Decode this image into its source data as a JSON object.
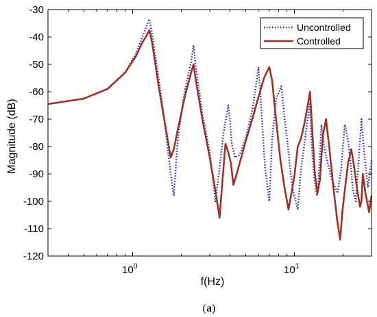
{
  "chart_data": {
    "type": "line",
    "title": "",
    "xlabel": "f(Hz)",
    "ylabel": "Magnitude (dB)",
    "caption_letter": "a",
    "xscale": "log",
    "xlim": [
      0.3,
      30
    ],
    "ylim": [
      -120,
      -30
    ],
    "grid": false,
    "legend_position": "top-right",
    "x_ticks": [
      {
        "value": 1,
        "base": "10",
        "exp": "0"
      },
      {
        "value": 10,
        "base": "10",
        "exp": "1"
      }
    ],
    "y_ticks": [
      -30,
      -40,
      -50,
      -60,
      -70,
      -80,
      -90,
      -100,
      -110,
      -120
    ],
    "series": [
      {
        "name": "Uncontrolled",
        "color": "#1f1fd0",
        "style": "dotted",
        "x": [
          0.3,
          0.5,
          0.7,
          0.9,
          1.05,
          1.15,
          1.22,
          1.27,
          1.32,
          1.45,
          1.6,
          1.72,
          1.8,
          1.9,
          2.1,
          2.3,
          2.38,
          2.45,
          2.7,
          3.0,
          3.25,
          3.45,
          3.65,
          3.9,
          4.0,
          4.1,
          4.3,
          4.6,
          5.0,
          5.5,
          5.85,
          6.0,
          6.15,
          6.4,
          6.6,
          7.0,
          7.3,
          7.7,
          8.3,
          8.8,
          9.2,
          9.5,
          9.9,
          10.5,
          11.0,
          11.6,
          12.1,
          12.5,
          12.8,
          13.3,
          13.8,
          14.2,
          14.7,
          15.5,
          17.0,
          18.5,
          19.5,
          20.5,
          21.5,
          22.2,
          23.0,
          24.0,
          25.0,
          26.0,
          27.0,
          28.5,
          30.0
        ],
        "y": [
          -64.5,
          -62.5,
          -59,
          -53,
          -46,
          -40,
          -36,
          -33.5,
          -39,
          -55,
          -74,
          -90,
          -98,
          -78,
          -60,
          -49,
          -43,
          -50,
          -68,
          -82,
          -100,
          -88,
          -75,
          -65,
          -70,
          -79,
          -84,
          -83,
          -77,
          -67,
          -56,
          -51,
          -60,
          -76,
          -88,
          -100,
          -77,
          -63,
          -58,
          -72,
          -82,
          -90,
          -97,
          -103,
          -88,
          -78,
          -70,
          -64,
          -80,
          -92,
          -98,
          -90,
          -72,
          -82,
          -92,
          -97,
          -88,
          -72,
          -78,
          -85,
          -96,
          -100,
          -85,
          -70,
          -82,
          -95,
          -85
        ]
      },
      {
        "name": "Controlled",
        "color": "#9e3222",
        "style": "solid",
        "x": [
          0.3,
          0.5,
          0.7,
          0.9,
          1.05,
          1.15,
          1.22,
          1.27,
          1.32,
          1.45,
          1.6,
          1.72,
          1.8,
          1.9,
          2.1,
          2.3,
          2.38,
          2.45,
          2.7,
          3.0,
          3.25,
          3.45,
          3.6,
          3.75,
          3.9,
          4.05,
          4.2,
          4.4,
          4.6,
          5.0,
          5.5,
          6.0,
          6.5,
          7.0,
          7.3,
          7.7,
          8.2,
          8.7,
          9.2,
          9.6,
          10.0,
          10.5,
          11.0,
          11.6,
          12.1,
          12.5,
          12.9,
          13.4,
          13.9,
          14.4,
          15.0,
          15.7,
          16.5,
          17.5,
          18.5,
          19.2,
          19.8,
          20.5,
          21.5,
          22.5,
          23.5,
          24.5,
          25.5,
          26.0,
          26.5,
          27.5,
          29.0,
          30.0
        ],
        "y": [
          -64.5,
          -62.5,
          -59,
          -53,
          -47,
          -42,
          -39.5,
          -37.5,
          -42,
          -58,
          -73,
          -84,
          -81,
          -74,
          -62,
          -53,
          -50,
          -55,
          -70,
          -84,
          -96,
          -106,
          -92,
          -79,
          -82,
          -86,
          -94,
          -90,
          -86,
          -78,
          -70,
          -62,
          -55,
          -51,
          -56,
          -70,
          -85,
          -95,
          -103,
          -97,
          -91,
          -80,
          -77,
          -71,
          -65,
          -60,
          -74,
          -90,
          -97,
          -92,
          -76,
          -70,
          -81,
          -96,
          -108,
          -114,
          -104,
          -96,
          -86,
          -81,
          -88,
          -96,
          -102,
          -100,
          -90,
          -97,
          -104,
          -98
        ]
      }
    ]
  }
}
